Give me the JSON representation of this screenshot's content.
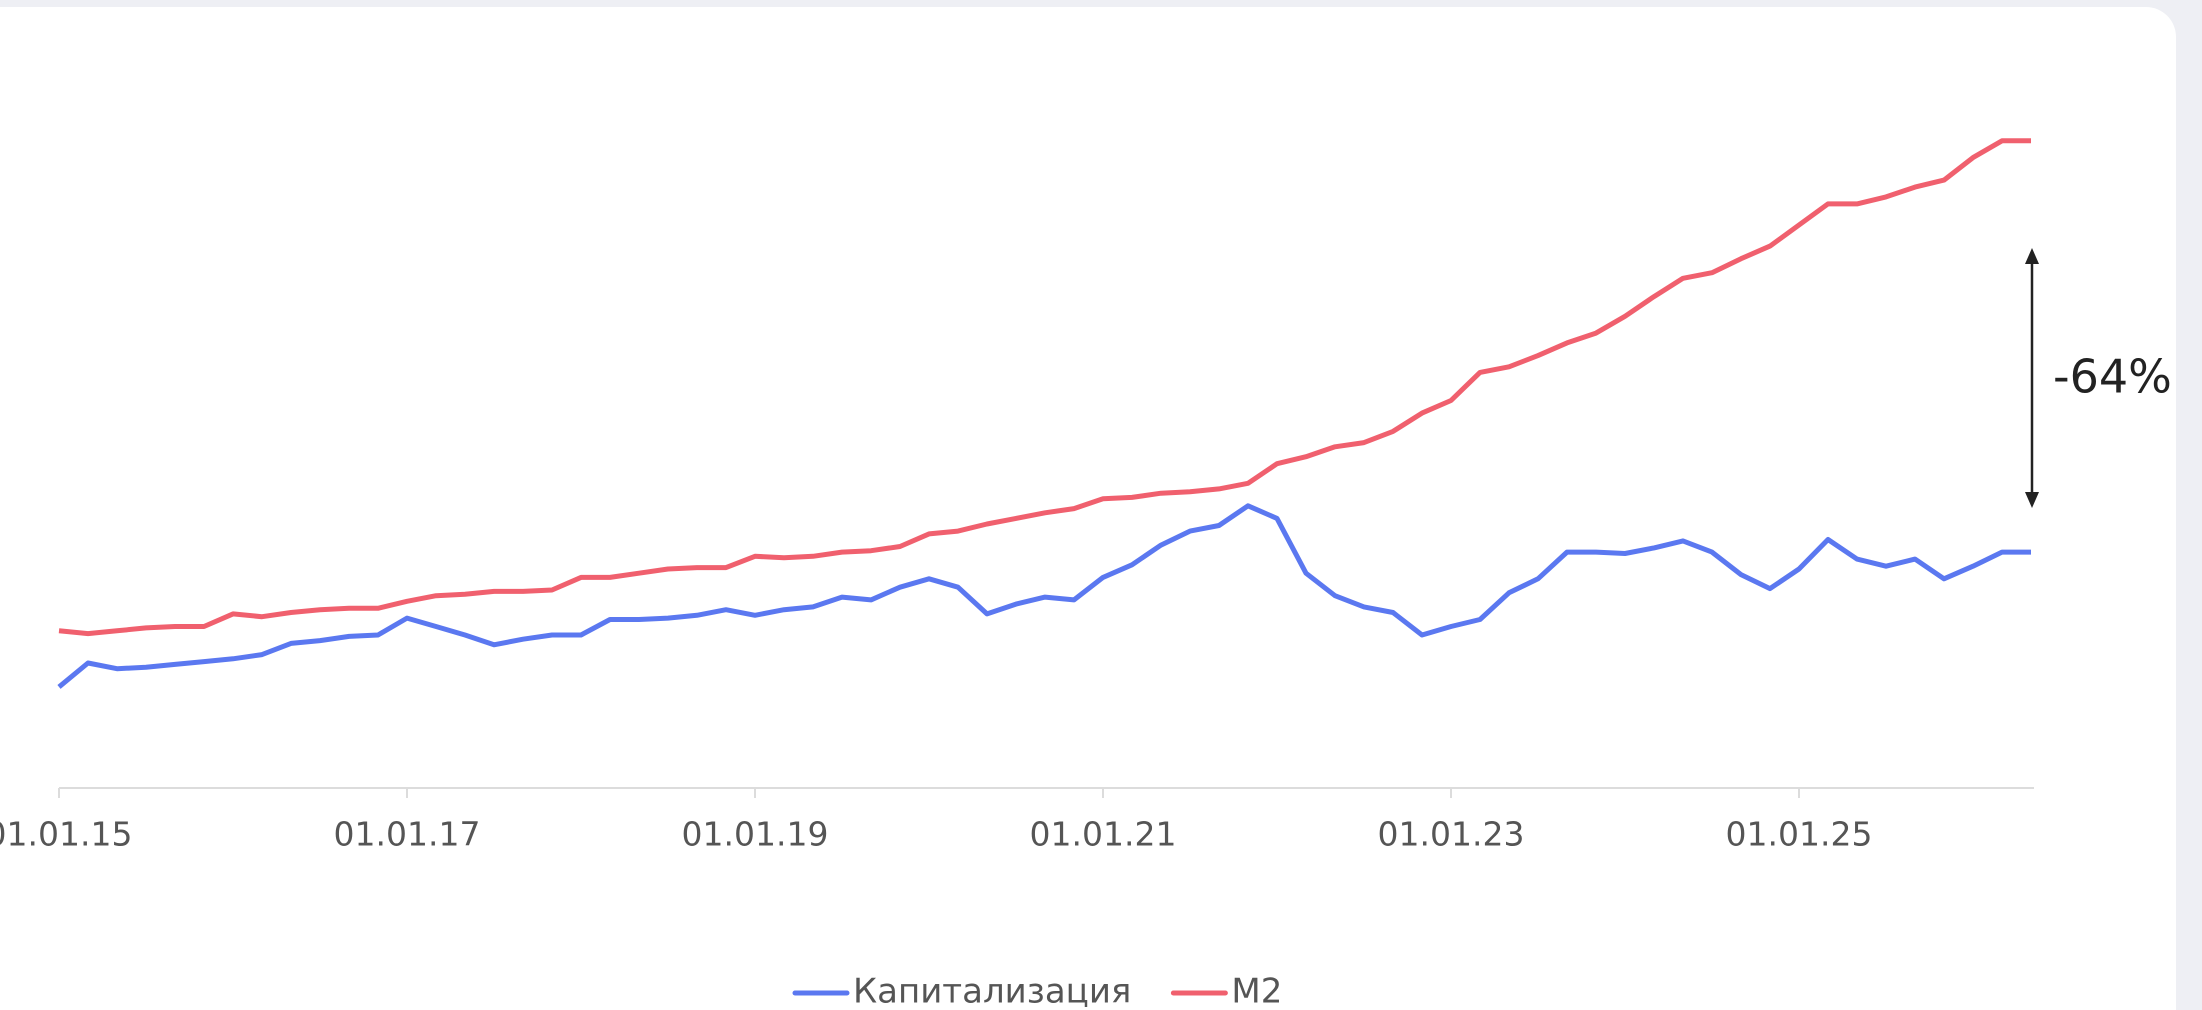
{
  "chart_data": {
    "type": "line",
    "x": [
      "01.01.15",
      "01.03.15",
      "01.05.15",
      "01.07.15",
      "01.09.15",
      "01.11.15",
      "01.01.16",
      "01.03.16",
      "01.05.16",
      "01.07.16",
      "01.09.16",
      "01.11.16",
      "01.01.17",
      "01.03.17",
      "01.05.17",
      "01.07.17",
      "01.09.17",
      "01.11.17",
      "01.01.18",
      "01.03.18",
      "01.05.18",
      "01.07.18",
      "01.09.18",
      "01.11.18",
      "01.01.19",
      "01.03.19",
      "01.05.19",
      "01.07.19",
      "01.09.19",
      "01.11.19",
      "01.01.20",
      "01.03.20",
      "01.05.20",
      "01.07.20",
      "01.09.20",
      "01.11.20",
      "01.01.21",
      "01.03.21",
      "01.05.21",
      "01.07.21",
      "01.09.21",
      "01.11.21",
      "01.01.22",
      "01.03.22",
      "01.05.22",
      "01.07.22",
      "01.09.22",
      "01.11.22",
      "01.01.23",
      "01.03.23",
      "01.05.23",
      "01.07.23",
      "01.09.23",
      "01.11.23",
      "01.01.24",
      "01.03.24",
      "01.05.24",
      "01.07.24",
      "01.09.24",
      "01.11.24",
      "01.01.25",
      "01.03.25",
      "01.05.25",
      "01.07.25",
      "01.09.25",
      "01.11.25",
      "01.01.26",
      "01.03.26",
      "01.05.26"
    ],
    "series": [
      {
        "name": "Капитализация",
        "color": "#5b78f0",
        "values": [
          72,
          89,
          85,
          86,
          88,
          90,
          92,
          95,
          103,
          105,
          108,
          109,
          121,
          115,
          109,
          102,
          106,
          109,
          109,
          120,
          120,
          121,
          123,
          127,
          123,
          127,
          129,
          136,
          134,
          143,
          149,
          143,
          124,
          131,
          136,
          134,
          150,
          159,
          173,
          183,
          187,
          201,
          192,
          153,
          137,
          129,
          125,
          109,
          115,
          120,
          139,
          149,
          168,
          168,
          167,
          171,
          176,
          168,
          152,
          142,
          156,
          177,
          163,
          158,
          163,
          149,
          158,
          168,
          168
        ]
      },
      {
        "name": "M2",
        "color": "#f0606e",
        "values": [
          112,
          110,
          112,
          114,
          115,
          115,
          124,
          122,
          125,
          127,
          128,
          128,
          133,
          137,
          138,
          140,
          140,
          141,
          150,
          150,
          153,
          156,
          157,
          157,
          165,
          164,
          165,
          168,
          169,
          172,
          181,
          183,
          188,
          192,
          196,
          199,
          206,
          207,
          210,
          211,
          213,
          217,
          231,
          236,
          243,
          246,
          254,
          267,
          276,
          296,
          300,
          308,
          317,
          324,
          336,
          350,
          363,
          367,
          377,
          386,
          401,
          416,
          416,
          421,
          428,
          433,
          449,
          461,
          461
        ]
      }
    ],
    "xlim": [
      "01.01.15",
      "01.05.26"
    ],
    "xticks": [
      "01.01.15",
      "01.01.17",
      "01.01.19",
      "01.01.21",
      "01.01.23",
      "01.01.25"
    ],
    "ylim": [
      0,
      500
    ],
    "annotation": "-64%",
    "legend": "bottom"
  }
}
